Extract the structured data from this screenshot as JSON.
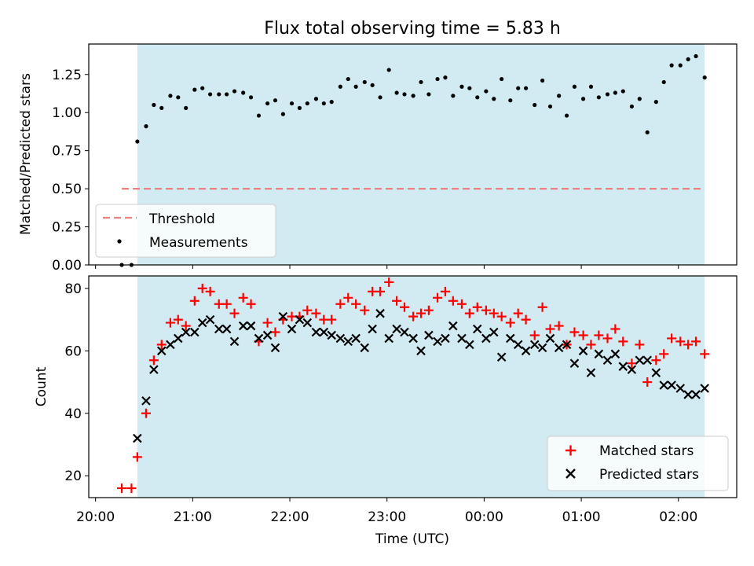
{
  "chart_data": [
    {
      "type": "scatter",
      "title": "Flux total observing time = 5.83 h",
      "ylabel": "Matched/Predicted stars",
      "ylim": [
        0,
        1.45
      ],
      "xlim_hours": [
        19.93,
        26.6
      ],
      "yticks": [
        "0.00",
        "0.25",
        "0.50",
        "0.75",
        "1.00",
        "1.25"
      ],
      "yticks_values": [
        0,
        0.25,
        0.5,
        0.75,
        1.0,
        1.25
      ],
      "shaded_span_hours": [
        20.43,
        26.27
      ],
      "shade_color": "#add8e6",
      "threshold": {
        "name": "Threshold",
        "value": 0.5,
        "x_from_hours": 20.27,
        "x_to_hours": 26.27,
        "color": "#f08080"
      },
      "series": [
        {
          "name": "Measurements",
          "color": "#000000",
          "x_hours": [
            20.27,
            20.37,
            20.43,
            20.52,
            20.6,
            20.68,
            20.77,
            20.85,
            20.93,
            21.02,
            21.1,
            21.18,
            21.27,
            21.35,
            21.43,
            21.52,
            21.6,
            21.68,
            21.77,
            21.85,
            21.93,
            22.02,
            22.1,
            22.18,
            22.27,
            22.35,
            22.43,
            22.52,
            22.6,
            22.68,
            22.77,
            22.85,
            22.93,
            23.02,
            23.1,
            23.18,
            23.27,
            23.35,
            23.43,
            23.52,
            23.6,
            23.68,
            23.77,
            23.85,
            23.93,
            24.02,
            24.1,
            24.18,
            24.27,
            24.35,
            24.43,
            24.52,
            24.6,
            24.68,
            24.77,
            24.85,
            24.93,
            25.02,
            25.1,
            25.18,
            25.27,
            25.35,
            25.43,
            25.52,
            25.6,
            25.68,
            25.77,
            25.85,
            25.93,
            26.02,
            26.1,
            26.18,
            26.27
          ],
          "y": [
            0.0,
            0.0,
            0.81,
            0.91,
            1.05,
            1.03,
            1.11,
            1.1,
            1.03,
            1.15,
            1.16,
            1.12,
            1.12,
            1.12,
            1.14,
            1.13,
            1.1,
            0.98,
            1.06,
            1.08,
            0.99,
            1.06,
            1.03,
            1.06,
            1.09,
            1.06,
            1.07,
            1.17,
            1.22,
            1.17,
            1.2,
            1.18,
            1.1,
            1.28,
            1.13,
            1.12,
            1.11,
            1.2,
            1.12,
            1.22,
            1.23,
            1.11,
            1.17,
            1.16,
            1.1,
            1.14,
            1.09,
            1.22,
            1.08,
            1.16,
            1.16,
            1.05,
            1.21,
            1.04,
            1.11,
            0.98,
            1.17,
            1.09,
            1.17,
            1.1,
            1.12,
            1.13,
            1.14,
            1.04,
            1.09,
            0.87,
            1.07,
            1.2,
            1.31,
            1.31,
            1.35,
            1.37,
            1.23
          ]
        }
      ],
      "legend": {
        "placement": "lower-left",
        "entries": [
          "Threshold",
          "Measurements"
        ]
      }
    },
    {
      "type": "scatter",
      "xlabel": "Time (UTC)",
      "ylabel": "Count",
      "ylim": [
        13,
        84
      ],
      "xlim_hours": [
        19.93,
        26.6
      ],
      "yticks": [
        "20",
        "40",
        "60",
        "80"
      ],
      "yticks_values": [
        20,
        40,
        60,
        80
      ],
      "xticks": [
        "20:00",
        "21:00",
        "22:00",
        "23:00",
        "00:00",
        "01:00",
        "02:00"
      ],
      "xticks_hours": [
        20,
        21,
        22,
        23,
        24,
        25,
        26
      ],
      "shaded_span_hours": [
        20.43,
        26.27
      ],
      "shade_color": "#add8e6",
      "series": [
        {
          "name": "Matched stars",
          "marker": "plus",
          "color": "#ff0000",
          "x_hours": [
            20.27,
            20.37,
            20.43,
            20.52,
            20.6,
            20.68,
            20.77,
            20.85,
            20.93,
            21.02,
            21.1,
            21.18,
            21.27,
            21.35,
            21.43,
            21.52,
            21.6,
            21.68,
            21.77,
            21.85,
            21.93,
            22.02,
            22.1,
            22.18,
            22.27,
            22.35,
            22.43,
            22.52,
            22.6,
            22.68,
            22.77,
            22.85,
            22.93,
            23.02,
            23.1,
            23.18,
            23.27,
            23.35,
            23.43,
            23.52,
            23.6,
            23.68,
            23.77,
            23.85,
            23.93,
            24.02,
            24.1,
            24.18,
            24.27,
            24.35,
            24.43,
            24.52,
            24.6,
            24.68,
            24.77,
            24.85,
            24.93,
            25.02,
            25.1,
            25.18,
            25.27,
            25.35,
            25.43,
            25.52,
            25.6,
            25.68,
            25.77,
            25.85,
            25.93,
            26.02,
            26.1,
            26.18,
            26.27
          ],
          "y": [
            16,
            16,
            26,
            40,
            57,
            62,
            69,
            70,
            68,
            76,
            80,
            79,
            75,
            75,
            72,
            77,
            75,
            63,
            69,
            66,
            70,
            71,
            71,
            73,
            72,
            70,
            70,
            75,
            77,
            75,
            73,
            79,
            79,
            82,
            76,
            74,
            71,
            72,
            73,
            77,
            79,
            76,
            75,
            72,
            74,
            73,
            72,
            71,
            69,
            72,
            70,
            65,
            74,
            67,
            68,
            62,
            66,
            65,
            62,
            65,
            64,
            67,
            63,
            56,
            62,
            50,
            57,
            59,
            64,
            63,
            62,
            63,
            59
          ]
        },
        {
          "name": "Predicted stars",
          "marker": "x",
          "color": "#000000",
          "x_hours": [
            20.43,
            20.52,
            20.6,
            20.68,
            20.77,
            20.85,
            20.93,
            21.02,
            21.1,
            21.18,
            21.27,
            21.35,
            21.43,
            21.52,
            21.6,
            21.68,
            21.77,
            21.85,
            21.93,
            22.02,
            22.1,
            22.18,
            22.27,
            22.35,
            22.43,
            22.52,
            22.6,
            22.68,
            22.77,
            22.85,
            22.93,
            23.02,
            23.1,
            23.18,
            23.27,
            23.35,
            23.43,
            23.52,
            23.6,
            23.68,
            23.77,
            23.85,
            23.93,
            24.02,
            24.1,
            24.18,
            24.27,
            24.35,
            24.43,
            24.52,
            24.6,
            24.68,
            24.77,
            24.85,
            24.93,
            25.02,
            25.1,
            25.18,
            25.27,
            25.35,
            25.43,
            25.52,
            25.6,
            25.68,
            25.77,
            25.85,
            25.93,
            26.02,
            26.1,
            26.18,
            26.27
          ],
          "y": [
            32,
            44,
            54,
            60,
            62,
            64,
            66,
            66,
            69,
            70,
            67,
            67,
            63,
            68,
            68,
            64,
            65,
            61,
            71,
            67,
            70,
            69,
            66,
            66,
            65,
            64,
            63,
            64,
            61,
            67,
            72,
            64,
            67,
            66,
            64,
            60,
            65,
            63,
            64,
            68,
            64,
            62,
            67,
            64,
            66,
            58,
            64,
            62,
            60,
            62,
            61,
            64,
            61,
            62,
            56,
            60,
            53,
            59,
            57,
            59,
            55,
            54,
            57,
            57,
            53,
            49,
            49,
            48,
            46,
            46,
            48
          ]
        }
      ],
      "legend": {
        "placement": "lower-right",
        "entries": [
          "Matched stars",
          "Predicted stars"
        ]
      }
    }
  ]
}
